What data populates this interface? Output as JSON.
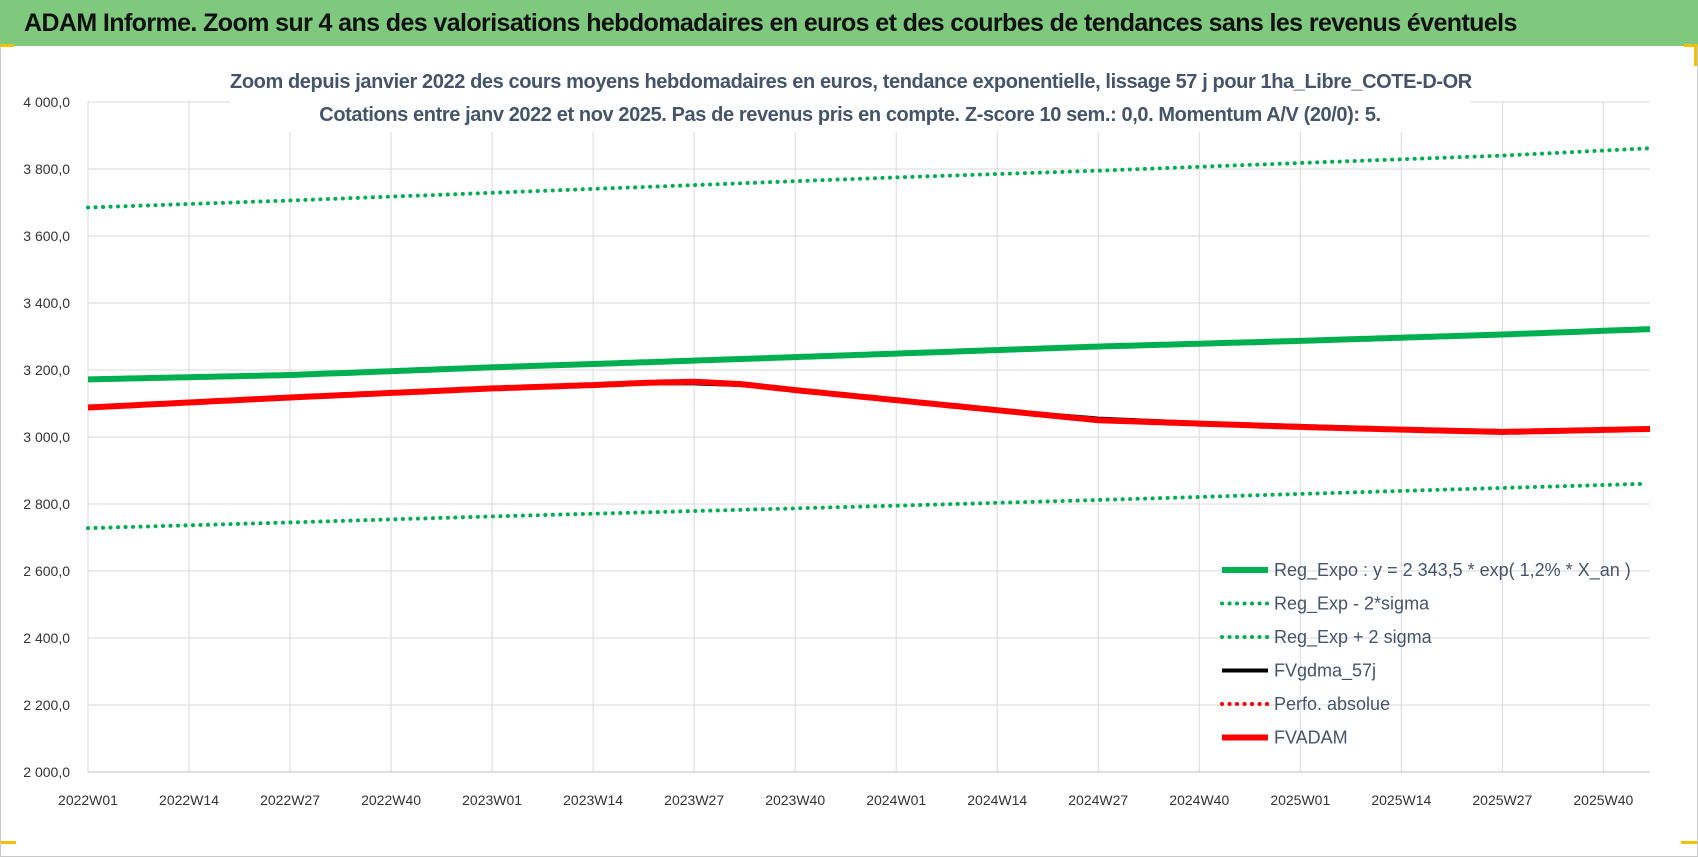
{
  "banner": {
    "title": "ADAM Informe. Zoom sur 4 ans des valorisations hebdomadaires en euros et des courbes de tendances sans les revenus éventuels"
  },
  "colors": {
    "banner_bg": "#7ec97d",
    "reg_expo": "#00b050",
    "fvgdma": "#000000",
    "fvadam": "#ff0000",
    "perfo": "#ff0000",
    "title_text": "#44546a",
    "grid": "#d9d9d9"
  },
  "chart_data": {
    "type": "line",
    "title": [
      "Zoom depuis janvier 2022 des cours moyens hebdomadaires en euros, tendance exponentielle, lissage 57 j pour 1ha_Libre_COTE-D-OR",
      "Cotations entre janv 2022 et nov 2025. Pas de revenus pris en compte. Z-score 10 sem.: 0,0. Momentum A/V (20/0): 5."
    ],
    "xlabel": "",
    "ylabel": "",
    "ylim": [
      2000,
      4000
    ],
    "yticks": [
      2000,
      2200,
      2400,
      2600,
      2800,
      3000,
      3200,
      3400,
      3600,
      3800,
      4000
    ],
    "ytick_labels": [
      "2 000,0",
      "2 200,0",
      "2 400,0",
      "2 600,0",
      "2 800,0",
      "3 000,0",
      "3 200,0",
      "3 400,0",
      "3 600,0",
      "3 800,0",
      "4 000,0"
    ],
    "x_count": 202,
    "x_tick_labels": [
      "2022W01",
      "2022W14",
      "2022W27",
      "2022W40",
      "2023W01",
      "2023W14",
      "2023W27",
      "2023W40",
      "2024W01",
      "2024W14",
      "2024W27",
      "2024W40",
      "2025W01",
      "2025W14",
      "2025W27",
      "2025W40"
    ],
    "x_tick_index": [
      0,
      13,
      26,
      39,
      52,
      65,
      78,
      91,
      104,
      117,
      130,
      143,
      156,
      169,
      182,
      195
    ],
    "grid": true,
    "legend_position": "bottom-right",
    "series": [
      {
        "name": "Reg_Expo : y = 2 343,5 * exp( 1,2% *  X_an )",
        "style": "solid-thick",
        "color": "#00b050",
        "x": [
          0,
          26,
          52,
          78,
          104,
          130,
          156,
          182,
          201
        ],
        "values": [
          3172,
          3185,
          3208,
          3228,
          3249,
          3270,
          3287,
          3306,
          3322
        ]
      },
      {
        "name": "Reg_Exp - 2*sigma",
        "style": "dotted",
        "color": "#00b050",
        "x": [
          0,
          26,
          52,
          78,
          104,
          130,
          156,
          182,
          200
        ],
        "values": [
          2728,
          2745,
          2763,
          2779,
          2795,
          2812,
          2830,
          2848,
          2860
        ]
      },
      {
        "name": "Reg_Exp + 2 sigma",
        "style": "dotted",
        "color": "#00b050",
        "x": [
          0,
          26,
          52,
          78,
          104,
          130,
          156,
          182,
          201
        ],
        "values": [
          3685,
          3706,
          3729,
          3752,
          3775,
          3795,
          3818,
          3840,
          3862
        ]
      },
      {
        "name": "FVgdma_57j",
        "style": "solid",
        "color": "#000000",
        "x": [
          0,
          26,
          52,
          65,
          72,
          78,
          84,
          91,
          104,
          117,
          130,
          143,
          156,
          169,
          182,
          201
        ],
        "values": [
          3088,
          3118,
          3145,
          3155,
          3160,
          3160,
          3155,
          3140,
          3110,
          3080,
          3055,
          3042,
          3033,
          3024,
          3018,
          3024
        ]
      },
      {
        "name": "Perfo. absolue",
        "style": "dotted",
        "color": "#ff0000",
        "x": [],
        "values": []
      },
      {
        "name": "FVADAM",
        "style": "solid-thick",
        "color": "#ff0000",
        "x": [
          0,
          26,
          52,
          65,
          72,
          78,
          84,
          91,
          104,
          117,
          130,
          143,
          156,
          169,
          182,
          201
        ],
        "values": [
          3088,
          3118,
          3145,
          3155,
          3162,
          3165,
          3158,
          3140,
          3110,
          3080,
          3050,
          3040,
          3030,
          3022,
          3015,
          3024
        ]
      }
    ]
  }
}
